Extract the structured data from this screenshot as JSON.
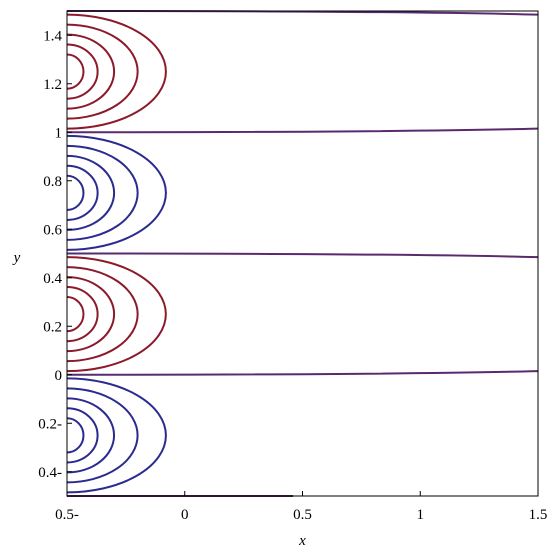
{
  "chart_data": {
    "type": "contour",
    "title": "",
    "xlabel": "x",
    "ylabel": "y",
    "xlim": [
      -0.5,
      1.5
    ],
    "ylim": [
      -0.5,
      1.5
    ],
    "x_ticks": [
      {
        "value": -0.5,
        "label": "0.5-"
      },
      {
        "value": 0,
        "label": "0"
      },
      {
        "value": 0.5,
        "label": "0.5"
      },
      {
        "value": 1,
        "label": "1"
      },
      {
        "value": 1.5,
        "label": "1.5"
      }
    ],
    "y_ticks": [
      {
        "value": -0.4,
        "label": "0.4-"
      },
      {
        "value": -0.2,
        "label": "0.2-"
      },
      {
        "value": 0,
        "label": "0"
      },
      {
        "value": 0.2,
        "label": "0.2"
      },
      {
        "value": 0.4,
        "label": "0.4"
      },
      {
        "value": 0.6,
        "label": "0.6"
      },
      {
        "value": 0.8,
        "label": "0.8"
      },
      {
        "value": 1,
        "label": "1"
      },
      {
        "value": 1.2,
        "label": "1.2"
      },
      {
        "value": 1.4,
        "label": "1.4"
      }
    ],
    "zero_level_lines": [
      {
        "y_start": -0.5,
        "y_end": -0.5,
        "x_end": 0.46
      },
      {
        "y_start": 0.0,
        "y_end": 0.015,
        "x_end": 1.5
      },
      {
        "y_start": 0.5,
        "y_end": 0.485,
        "x_end": 1.5
      },
      {
        "y_start": 1.0,
        "y_end": 1.015,
        "x_end": 1.5
      },
      {
        "y_start": 1.5,
        "y_end": 1.485,
        "x_end": 1.5
      }
    ],
    "loop_groups": [
      {
        "center_y": -0.25,
        "color": "#2b2b8f",
        "extents_x": [
          -0.43,
          -0.37,
          -0.3,
          -0.2,
          -0.08
        ]
      },
      {
        "center_y": 0.25,
        "color": "#8b1a2b",
        "extents_x": [
          -0.43,
          -0.37,
          -0.3,
          -0.2,
          -0.08
        ]
      },
      {
        "center_y": 0.75,
        "color": "#2b2b8f",
        "extents_x": [
          -0.43,
          -0.37,
          -0.3,
          -0.2,
          -0.08
        ]
      },
      {
        "center_y": 1.25,
        "color": "#8b1a2b",
        "extents_x": [
          -0.43,
          -0.37,
          -0.3,
          -0.2,
          -0.08
        ]
      }
    ],
    "zero_line_color": "#5a2a6e",
    "grid": false,
    "legend": false
  }
}
